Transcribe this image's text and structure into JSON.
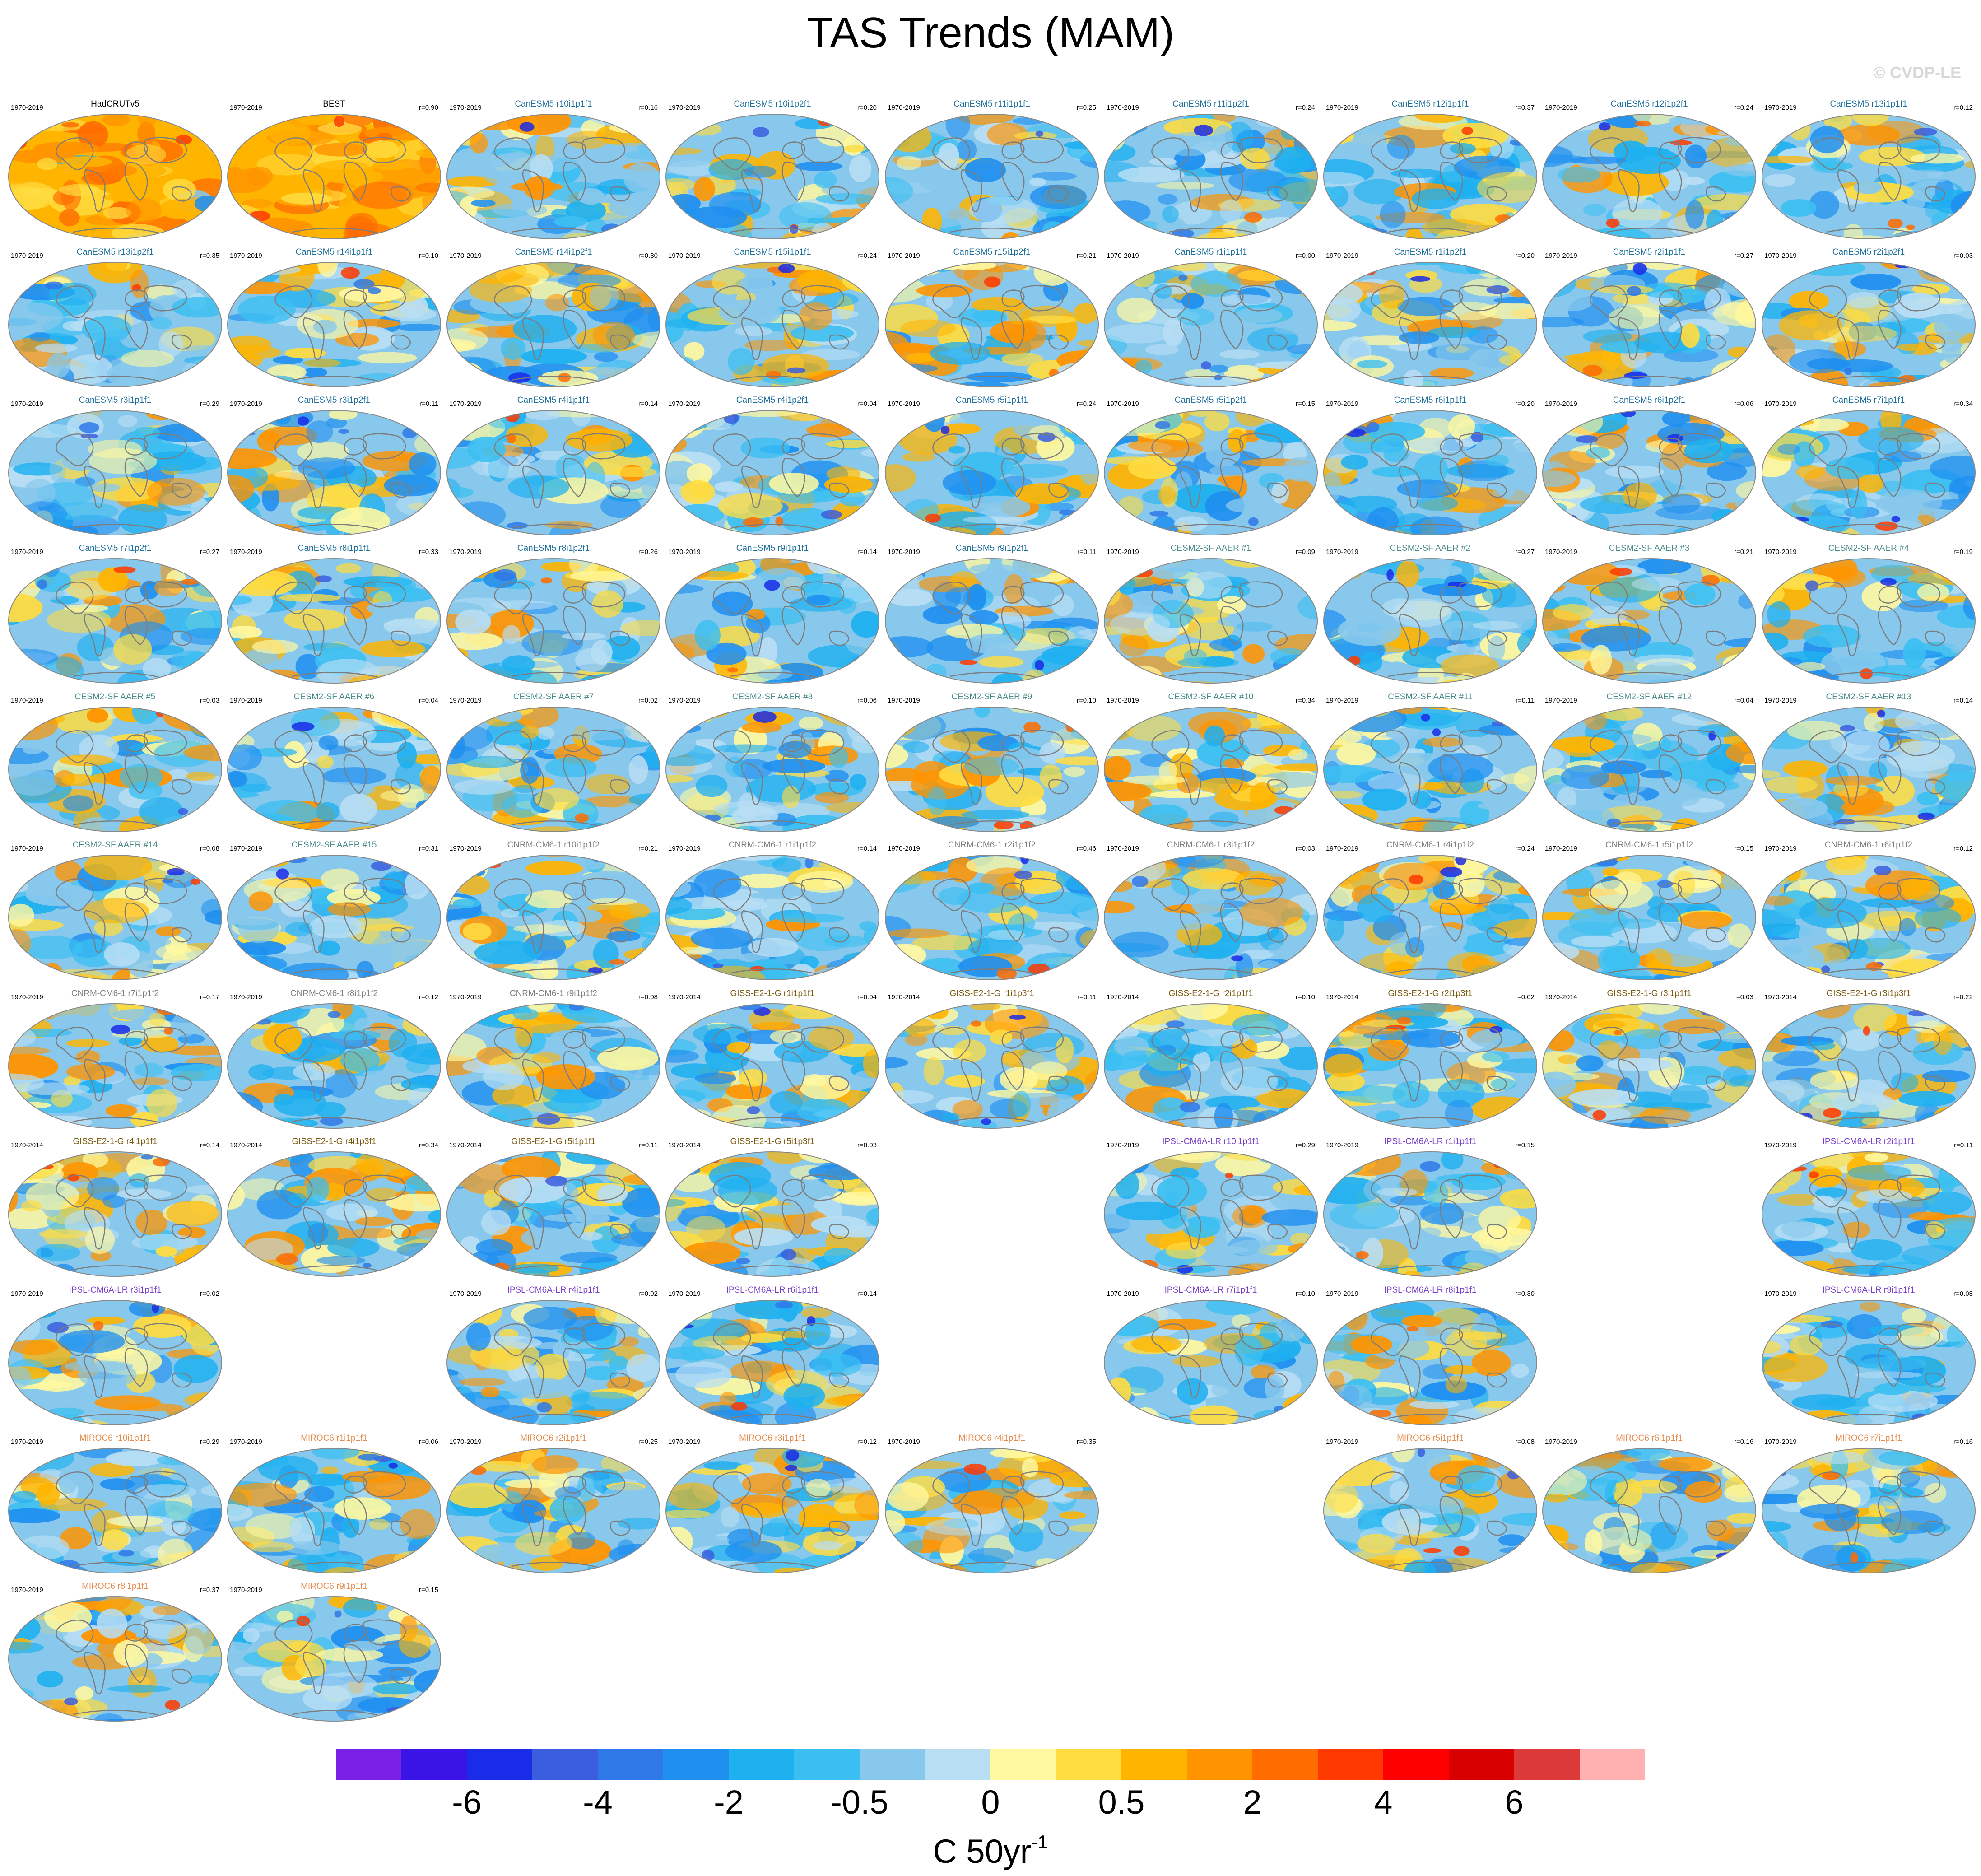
{
  "title": "TAS Trends (MAM)",
  "copyright": "© CVDP-LE",
  "colors": {
    "hadcrut": "#000000",
    "best": "#000000",
    "canesm5": "#1f6f9b",
    "cesm2": "#4a8a8a",
    "cnrm": "#7f7f7f",
    "giss": "#7a5a10",
    "ipsl": "#7a3fc8",
    "miroc": "#e48a4a"
  },
  "chart_data": {
    "type": "heatmap",
    "description_of_panels": "Global maps of MAM surface air temperature trends; each panel shows period, dataset/member name and pattern correlation r",
    "colorbar": {
      "colors": [
        "#7a1fe6",
        "#3a14e6",
        "#1a2ce8",
        "#3b5ede",
        "#2f78e8",
        "#1f8ff0",
        "#1fb0f0",
        "#3bbff2",
        "#88c8ec",
        "#b8def4",
        "#fff8a0",
        "#ffdc40",
        "#ffb400",
        "#ff9400",
        "#ff6c00",
        "#ff3a00",
        "#ff0000",
        "#d80000",
        "#dc3a3a",
        "#ffb0b0"
      ],
      "tick_labels": [
        "-6",
        "-4",
        "-2",
        "-0.5",
        "0",
        "0.5",
        "2",
        "4",
        "6"
      ],
      "units_base": "C 50yr",
      "units_exp": "-1"
    },
    "panels": [
      {
        "period": "1970-2019",
        "name": "HadCRUTv5",
        "r": "",
        "group": "hadcrut",
        "warm": 0.95
      },
      {
        "period": "1970-2019",
        "name": "BEST",
        "r": "r=0.90",
        "group": "best",
        "warm": 0.98
      },
      {
        "period": "1970-2019",
        "name": "CanESM5 r10i1p1f1",
        "r": "r=0.16",
        "group": "canesm5",
        "warm": 0.35
      },
      {
        "period": "1970-2019",
        "name": "CanESM5 r10i1p2f1",
        "r": "r=0.20",
        "group": "canesm5",
        "warm": 0.4
      },
      {
        "period": "1970-2019",
        "name": "CanESM5 r11i1p1f1",
        "r": "r=0.25",
        "group": "canesm5",
        "warm": 0.2
      },
      {
        "period": "1970-2019",
        "name": "CanESM5 r11i1p2f1",
        "r": "r=0.24",
        "group": "canesm5",
        "warm": 0.3
      },
      {
        "period": "1970-2019",
        "name": "CanESM5 r12i1p1f1",
        "r": "r=0.37",
        "group": "canesm5",
        "warm": 0.35
      },
      {
        "period": "1970-2019",
        "name": "CanESM5 r12i1p2f1",
        "r": "r=0.24",
        "group": "canesm5",
        "warm": 0.3
      },
      {
        "period": "1970-2019",
        "name": "CanESM5 r13i1p1f1",
        "r": "r=0.12",
        "group": "canesm5",
        "warm": 0.3
      },
      {
        "period": "1970-2019",
        "name": "CanESM5 r13i1p2f1",
        "r": "r=0.35",
        "group": "canesm5",
        "warm": 0.3
      },
      {
        "period": "1970-2019",
        "name": "CanESM5 r14i1p1f1",
        "r": "r=0.10",
        "group": "canesm5",
        "warm": 0.35
      },
      {
        "period": "1970-2019",
        "name": "CanESM5 r14i1p2f1",
        "r": "r=0.30",
        "group": "canesm5",
        "warm": 0.4
      },
      {
        "period": "1970-2019",
        "name": "CanESM5 r15i1p1f1",
        "r": "r=0.24",
        "group": "canesm5",
        "warm": 0.3
      },
      {
        "period": "1970-2019",
        "name": "CanESM5 r15i1p2f1",
        "r": "r=0.21",
        "group": "canesm5",
        "warm": 0.5
      },
      {
        "period": "1970-2019",
        "name": "CanESM5 r1i1p1f1",
        "r": "r=0.00",
        "group": "canesm5",
        "warm": 0.35
      },
      {
        "period": "1970-2019",
        "name": "CanESM5 r1i1p2f1",
        "r": "r=0.20",
        "group": "canesm5",
        "warm": 0.35
      },
      {
        "period": "1970-2019",
        "name": "CanESM5 r2i1p1f1",
        "r": "r=0.27",
        "group": "canesm5",
        "warm": 0.3
      },
      {
        "period": "1970-2019",
        "name": "CanESM5 r2i1p2f1",
        "r": "r=0.03",
        "group": "canesm5",
        "warm": 0.4
      },
      {
        "period": "1970-2019",
        "name": "CanESM5 r3i1p1f1",
        "r": "r=0.29",
        "group": "canesm5",
        "warm": 0.3
      },
      {
        "period": "1970-2019",
        "name": "CanESM5 r3i1p2f1",
        "r": "r=0.11",
        "group": "canesm5",
        "warm": 0.4
      },
      {
        "period": "1970-2019",
        "name": "CanESM5 r4i1p1f1",
        "r": "r=0.14",
        "group": "canesm5",
        "warm": 0.25
      },
      {
        "period": "1970-2019",
        "name": "CanESM5 r4i1p2f1",
        "r": "r=0.04",
        "group": "canesm5",
        "warm": 0.3
      },
      {
        "period": "1970-2019",
        "name": "CanESM5 r5i1p1f1",
        "r": "r=0.24",
        "group": "canesm5",
        "warm": 0.3
      },
      {
        "period": "1970-2019",
        "name": "CanESM5 r5i1p2f1",
        "r": "r=0.15",
        "group": "canesm5",
        "warm": 0.5
      },
      {
        "period": "1970-2019",
        "name": "CanESM5 r6i1p1f1",
        "r": "r=0.20",
        "group": "canesm5",
        "warm": 0.3
      },
      {
        "period": "1970-2019",
        "name": "CanESM5 r6i1p2f1",
        "r": "r=0.06",
        "group": "canesm5",
        "warm": 0.25
      },
      {
        "period": "1970-2019",
        "name": "CanESM5 r7i1p1f1",
        "r": "r=0.34",
        "group": "canesm5",
        "warm": 0.3
      },
      {
        "period": "1970-2019",
        "name": "CanESM5 r7i1p2f1",
        "r": "r=0.27",
        "group": "canesm5",
        "warm": 0.35
      },
      {
        "period": "1970-2019",
        "name": "CanESM5 r8i1p1f1",
        "r": "r=0.33",
        "group": "canesm5",
        "warm": 0.45
      },
      {
        "period": "1970-2019",
        "name": "CanESM5 r8i1p2f1",
        "r": "r=0.26",
        "group": "canesm5",
        "warm": 0.3
      },
      {
        "period": "1970-2019",
        "name": "CanESM5 r9i1p1f1",
        "r": "r=0.14",
        "group": "canesm5",
        "warm": 0.35
      },
      {
        "period": "1970-2019",
        "name": "CanESM5 r9i1p2f1",
        "r": "r=0.11",
        "group": "canesm5",
        "warm": 0.3
      },
      {
        "period": "1970-2019",
        "name": "CESM2-SF AAER #1",
        "r": "r=0.09",
        "group": "cesm2",
        "warm": 0.45
      },
      {
        "period": "1970-2019",
        "name": "CESM2-SF AAER #2",
        "r": "r=0.27",
        "group": "cesm2",
        "warm": 0.35
      },
      {
        "period": "1970-2019",
        "name": "CESM2-SF AAER #3",
        "r": "r=0.21",
        "group": "cesm2",
        "warm": 0.45
      },
      {
        "period": "1970-2019",
        "name": "CESM2-SF AAER #4",
        "r": "r=0.19",
        "group": "cesm2",
        "warm": 0.3
      },
      {
        "period": "1970-2019",
        "name": "CESM2-SF AAER #5",
        "r": "r=0.03",
        "group": "cesm2",
        "warm": 0.4
      },
      {
        "period": "1970-2019",
        "name": "CESM2-SF AAER #6",
        "r": "r=0.04",
        "group": "cesm2",
        "warm": 0.35
      },
      {
        "period": "1970-2019",
        "name": "CESM2-SF AAER #7",
        "r": "r=0.02",
        "group": "cesm2",
        "warm": 0.35
      },
      {
        "period": "1970-2019",
        "name": "CESM2-SF AAER #8",
        "r": "r=0.06",
        "group": "cesm2",
        "warm": 0.35
      },
      {
        "period": "1970-2019",
        "name": "CESM2-SF AAER #9",
        "r": "r=0.10",
        "group": "cesm2",
        "warm": 0.4
      },
      {
        "period": "1970-2019",
        "name": "CESM2-SF AAER #10",
        "r": "r=0.34",
        "group": "cesm2",
        "warm": 0.5
      },
      {
        "period": "1970-2019",
        "name": "CESM2-SF AAER #11",
        "r": "r=0.11",
        "group": "cesm2",
        "warm": 0.4
      },
      {
        "period": "1970-2019",
        "name": "CESM2-SF AAER #12",
        "r": "r=0.04",
        "group": "cesm2",
        "warm": 0.35
      },
      {
        "period": "1970-2019",
        "name": "CESM2-SF AAER #13",
        "r": "r=0.14",
        "group": "cesm2",
        "warm": 0.4
      },
      {
        "period": "1970-2019",
        "name": "CESM2-SF AAER #14",
        "r": "r=0.08",
        "group": "cesm2",
        "warm": 0.45
      },
      {
        "period": "1970-2019",
        "name": "CESM2-SF AAER #15",
        "r": "r=0.31",
        "group": "cesm2",
        "warm": 0.3
      },
      {
        "period": "1970-2019",
        "name": "CNRM-CM6-1 r10i1p1f2",
        "r": "r=0.21",
        "group": "cnrm",
        "warm": 0.5
      },
      {
        "period": "1970-2019",
        "name": "CNRM-CM6-1 r1i1p1f2",
        "r": "r=0.14",
        "group": "cnrm",
        "warm": 0.35
      },
      {
        "period": "1970-2019",
        "name": "CNRM-CM6-1 r2i1p1f2",
        "r": "r=0.46",
        "group": "cnrm",
        "warm": 0.2
      },
      {
        "period": "1970-2019",
        "name": "CNRM-CM6-1 r3i1p1f2",
        "r": "r=0.03",
        "group": "cnrm",
        "warm": 0.3
      },
      {
        "period": "1970-2019",
        "name": "CNRM-CM6-1 r4i1p1f2",
        "r": "r=0.24",
        "group": "cnrm",
        "warm": 0.55
      },
      {
        "period": "1970-2019",
        "name": "CNRM-CM6-1 r5i1p1f2",
        "r": "r=0.15",
        "group": "cnrm",
        "warm": 0.45
      },
      {
        "period": "1970-2019",
        "name": "CNRM-CM6-1 r6i1p1f2",
        "r": "r=0.12",
        "group": "cnrm",
        "warm": 0.35
      },
      {
        "period": "1970-2019",
        "name": "CNRM-CM6-1 r7i1p1f2",
        "r": "r=0.17",
        "group": "cnrm",
        "warm": 0.45
      },
      {
        "period": "1970-2019",
        "name": "CNRM-CM6-1 r8i1p1f2",
        "r": "r=0.12",
        "group": "cnrm",
        "warm": 0.3
      },
      {
        "period": "1970-2019",
        "name": "CNRM-CM6-1 r9i1p1f2",
        "r": "r=0.08",
        "group": "cnrm",
        "warm": 0.35
      },
      {
        "period": "1970-2014",
        "name": "GISS-E2-1-G r1i1p1f1",
        "r": "r=0.04",
        "group": "giss",
        "warm": 0.45
      },
      {
        "period": "1970-2014",
        "name": "GISS-E2-1-G r1i1p3f1",
        "r": "r=0.11",
        "group": "giss",
        "warm": 0.45
      },
      {
        "period": "1970-2014",
        "name": "GISS-E2-1-G r2i1p1f1",
        "r": "r=0.10",
        "group": "giss",
        "warm": 0.35
      },
      {
        "period": "1970-2014",
        "name": "GISS-E2-1-G r2i1p3f1",
        "r": "r=0.02",
        "group": "giss",
        "warm": 0.4
      },
      {
        "period": "1970-2014",
        "name": "GISS-E2-1-G r3i1p1f1",
        "r": "r=0.03",
        "group": "giss",
        "warm": 0.45
      },
      {
        "period": "1970-2014",
        "name": "GISS-E2-1-G r3i1p3f1",
        "r": "r=0.22",
        "group": "giss",
        "warm": 0.4
      },
      {
        "period": "1970-2014",
        "name": "GISS-E2-1-G r4i1p1f1",
        "r": "r=0.14",
        "group": "giss",
        "warm": 0.55
      },
      {
        "period": "1970-2014",
        "name": "GISS-E2-1-G r4i1p3f1",
        "r": "r=0.34",
        "group": "giss",
        "warm": 0.45
      },
      {
        "period": "1970-2014",
        "name": "GISS-E2-1-G r5i1p1f1",
        "r": "r=0.11",
        "group": "giss",
        "warm": 0.3
      },
      {
        "period": "1970-2014",
        "name": "GISS-E2-1-G r5i1p3f1",
        "r": "r=0.03",
        "group": "giss",
        "warm": 0.45
      },
      {
        "period": "1970-2019",
        "name": "IPSL-CM6A-LR r10i1p1f1",
        "r": "r=0.29",
        "group": "ipsl",
        "warm": 0.45
      },
      {
        "period": "1970-2019",
        "name": "IPSL-CM6A-LR r1i1p1f1",
        "r": "r=0.15",
        "group": "ipsl",
        "warm": 0.45
      },
      {
        "period": "1970-2019",
        "name": "IPSL-CM6A-LR r2i1p1f1",
        "r": "r=0.11",
        "group": "ipsl",
        "warm": 0.35
      },
      {
        "period": "1970-2019",
        "name": "IPSL-CM6A-LR r3i1p1f1",
        "r": "r=0.02",
        "group": "ipsl",
        "warm": 0.4
      },
      {
        "period": "1970-2019",
        "name": "IPSL-CM6A-LR r4i1p1f1",
        "r": "r=0.02",
        "group": "ipsl",
        "warm": 0.5
      },
      {
        "period": "1970-2019",
        "name": "IPSL-CM6A-LR r6i1p1f1",
        "r": "r=0.14",
        "group": "ipsl",
        "warm": 0.4
      },
      {
        "period": "1970-2019",
        "name": "IPSL-CM6A-LR r7i1p1f1",
        "r": "r=0.10",
        "group": "ipsl",
        "warm": 0.45
      },
      {
        "period": "1970-2019",
        "name": "IPSL-CM6A-LR r8i1p1f1",
        "r": "r=0.30",
        "group": "ipsl",
        "warm": 0.4
      },
      {
        "period": "1970-2019",
        "name": "IPSL-CM6A-LR r9i1p1f1",
        "r": "r=0.08",
        "group": "ipsl",
        "warm": 0.3
      },
      {
        "period": "1970-2019",
        "name": "MIROC6 r10i1p1f1",
        "r": "r=0.29",
        "group": "miroc",
        "warm": 0.4
      },
      {
        "period": "1970-2019",
        "name": "MIROC6 r1i1p1f1",
        "r": "r=0.06",
        "group": "miroc",
        "warm": 0.45
      },
      {
        "period": "1970-2019",
        "name": "MIROC6 r2i1p1f1",
        "r": "r=0.25",
        "group": "miroc",
        "warm": 0.45
      },
      {
        "period": "1970-2019",
        "name": "MIROC6 r3i1p1f1",
        "r": "r=0.12",
        "group": "miroc",
        "warm": 0.35
      },
      {
        "period": "1970-2019",
        "name": "MIROC6 r4i1p1f1",
        "r": "r=0.35",
        "group": "miroc",
        "warm": 0.55
      },
      {
        "period": "1970-2019",
        "name": "MIROC6 r5i1p1f1",
        "r": "r=0.08",
        "group": "miroc",
        "warm": 0.45
      },
      {
        "period": "1970-2019",
        "name": "MIROC6 r6i1p1f1",
        "r": "r=0.16",
        "group": "miroc",
        "warm": 0.5
      },
      {
        "period": "1970-2019",
        "name": "MIROC6 r7i1p1f1",
        "r": "r=0.16",
        "group": "miroc",
        "warm": 0.4
      },
      {
        "period": "1970-2019",
        "name": "MIROC6 r8i1p1f1",
        "r": "r=0.37",
        "group": "miroc",
        "warm": 0.45
      },
      {
        "period": "1970-2019",
        "name": "MIROC6 r9i1p1f1",
        "r": "r=0.15",
        "group": "miroc",
        "warm": 0.4
      }
    ]
  }
}
